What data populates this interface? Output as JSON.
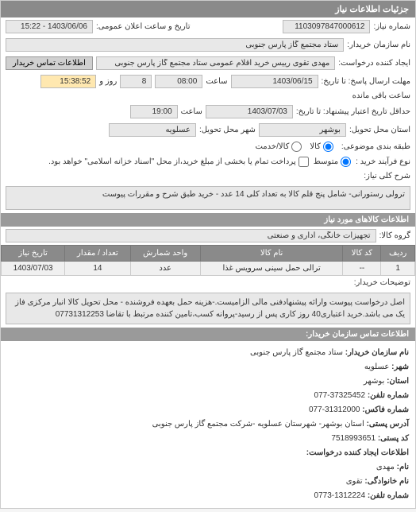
{
  "panel_title": "جزئیات اطلاعات نیاز",
  "request_number_label": "شماره نیاز:",
  "request_number": "1103097847000612",
  "announce_datetime_label": "تاریخ و ساعت اعلان عمومی:",
  "announce_datetime": "1403/06/06 - 15:22",
  "buyer_name_label": "نام سازمان خریدار:",
  "buyer_name": "ستاد مجتمع گاز پارس جنوبی",
  "request_creator_label": "ایجاد کننده درخواست:",
  "request_creator": "مهدی تقوی رییس خرید اقلام عمومی ستاد مجتمع گاز پارس جنوبی",
  "buyer_contact_btn": "اطلاعات تماس خریدار",
  "deadline_send_label": "مهلت ارسال پاسخ: تا تاریخ:",
  "deadline_date": "1403/06/15",
  "time_label": "ساعت",
  "deadline_time": "08:00",
  "days_label": "روز و",
  "days_remaining": "8",
  "time_remaining": "15:38:52",
  "remaining_label": "ساعت باقی مانده",
  "validity_label": "حداقل تاریخ اعتبار پیشنهاد: تا تاریخ:",
  "validity_date": "1403/07/03",
  "validity_time": "19:00",
  "delivery_state_label": "استان محل تحویل:",
  "delivery_state": "بوشهر",
  "delivery_city_label": "شهر محل تحویل:",
  "delivery_city": "عسلویه",
  "budget_type_label": "طبقه بندی موضوعی:",
  "budget_options": {
    "goods": "کالا",
    "service": "کالا/خدمت",
    "selected": "goods"
  },
  "purchase_type_label": "نوع فرآیند خرید :",
  "purchase_options": {
    "medium": "متوسط",
    "checkbox_text": "پرداخت تمام یا بخشی از مبلغ خرید،از محل \"اسناد خزانه اسلامی\" خواهد بود."
  },
  "general_desc_label": "شرح کلی نیاز:",
  "general_desc": "ترولی رستورانی- شامل پنج قلم کالا به تعداد کلی 14 عدد - خرید طبق شرح و مقررات پیوست",
  "goods_section_title": "اطلاعات کالاهای مورد نیاز",
  "goods_group_label": "گروه کالا:",
  "goods_group": "تجهیزات خانگی، اداری و صنعتی",
  "table": {
    "headers": [
      "ردیف",
      "کد کالا",
      "نام کالا",
      "واحد شمارش",
      "تعداد / مقدار",
      "تاریخ نیاز"
    ],
    "row": [
      "1",
      "--",
      "ترالی حمل سینی سرویس غذا",
      "عدد",
      "14",
      "1403/07/03"
    ]
  },
  "buyer_notes_label": "توضیحات خریدار:",
  "buyer_notes": "اصل درخواست پیوست وارائه پیشنهادفنی مالی الزامیست.-هزینه حمل بعهده فروشنده - محل تحویل کالا انبار مرکزی فاز یک می باشد.خرید اعتباری40 روز کاری پس از رسید-پروانه کسب،تامین کننده مرتبط با تقاضا 07731312253",
  "contact_section_title": "اطلاعات تماس سازمان خریدار:",
  "contact": {
    "org_label": "نام سازمان خریدار:",
    "org": "ستاد مجتمع گاز پارس جنوبی",
    "city_label": "شهر:",
    "city": "عسلویه",
    "state_label": "استان:",
    "state": "بوشهر",
    "phone_label": "شماره تلفن:",
    "phone": "37325452-077",
    "fax_label": "شماره فاکس:",
    "fax": "31312000-077",
    "address_label": "آدرس پستی:",
    "address": "استان بوشهر- شهرستان عسلویه -شرکت مجتمع گاز پارس جنوبی",
    "postal_label": "کد پستی:",
    "postal": "7518993651",
    "creator_info_label": "اطلاعات ایجاد کننده درخواست:",
    "name_label": "نام:",
    "name": "مهدی",
    "family_label": "نام خانوادگی:",
    "family": "تقوی",
    "tel_label": "شماره تلفن:",
    "tel": "1312224-0773"
  }
}
